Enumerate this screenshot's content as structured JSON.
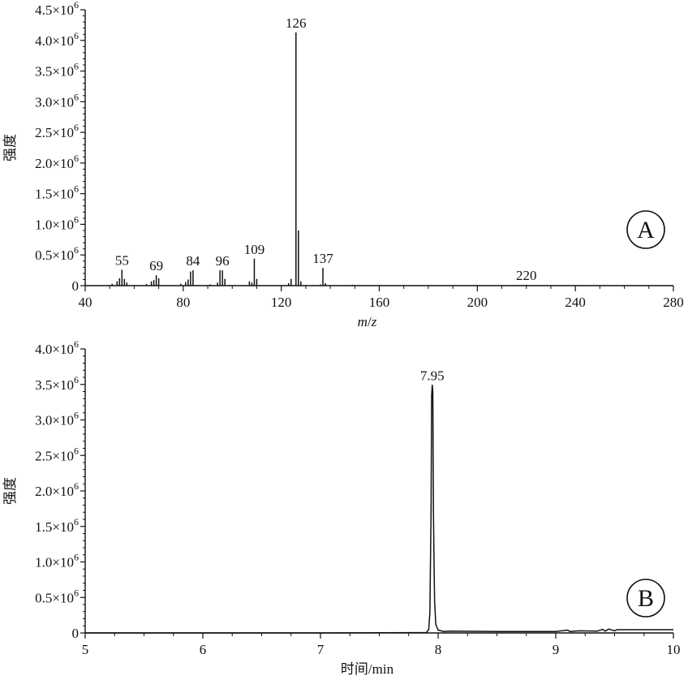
{
  "chart_data": [
    {
      "type": "bar",
      "panel_label": "A",
      "xlabel": "m/z",
      "ylabel": "强度",
      "xlim": [
        40,
        280
      ],
      "ylim": [
        0,
        4500000
      ],
      "x_ticks": [
        40,
        80,
        120,
        160,
        200,
        240,
        280
      ],
      "x_tick_labels": [
        "40",
        "80",
        "120",
        "160",
        "200",
        "240",
        "280"
      ],
      "y_ticks": [
        0,
        500000,
        1000000,
        1500000,
        2000000,
        2500000,
        3000000,
        3500000,
        4000000,
        4500000
      ],
      "y_tick_labels": [
        {
          "mantissa": "0",
          "exp": ""
        },
        {
          "mantissa": "0.5×10",
          "exp": "6"
        },
        {
          "mantissa": "1.0×10",
          "exp": "6"
        },
        {
          "mantissa": "1.5×10",
          "exp": "6"
        },
        {
          "mantissa": "2.0×10",
          "exp": "6"
        },
        {
          "mantissa": "2.5×10",
          "exp": "6"
        },
        {
          "mantissa": "3.0×10",
          "exp": "6"
        },
        {
          "mantissa": "3.5×10",
          "exp": "6"
        },
        {
          "mantissa": "4.0×10",
          "exp": "6"
        },
        {
          "mantissa": "4.5×10",
          "exp": "6"
        }
      ],
      "peaks": [
        {
          "x": 51,
          "y": 30000
        },
        {
          "x": 53,
          "y": 70000
        },
        {
          "x": 54,
          "y": 120000
        },
        {
          "x": 55,
          "y": 260000
        },
        {
          "x": 56,
          "y": 110000
        },
        {
          "x": 57,
          "y": 50000
        },
        {
          "x": 65,
          "y": 25000
        },
        {
          "x": 67,
          "y": 70000
        },
        {
          "x": 68,
          "y": 90000
        },
        {
          "x": 69,
          "y": 170000
        },
        {
          "x": 70,
          "y": 120000
        },
        {
          "x": 79,
          "y": 30000
        },
        {
          "x": 81,
          "y": 60000
        },
        {
          "x": 82,
          "y": 100000
        },
        {
          "x": 83,
          "y": 230000
        },
        {
          "x": 84,
          "y": 250000
        },
        {
          "x": 91,
          "y": 20000
        },
        {
          "x": 94,
          "y": 50000
        },
        {
          "x": 95,
          "y": 250000
        },
        {
          "x": 96,
          "y": 250000
        },
        {
          "x": 97,
          "y": 110000
        },
        {
          "x": 107,
          "y": 70000
        },
        {
          "x": 108,
          "y": 50000
        },
        {
          "x": 109,
          "y": 440000
        },
        {
          "x": 110,
          "y": 110000
        },
        {
          "x": 123,
          "y": 40000
        },
        {
          "x": 124,
          "y": 110000
        },
        {
          "x": 126,
          "y": 4130000
        },
        {
          "x": 127,
          "y": 900000
        },
        {
          "x": 128,
          "y": 70000
        },
        {
          "x": 136,
          "y": 20000
        },
        {
          "x": 137,
          "y": 290000
        },
        {
          "x": 138,
          "y": 40000
        },
        {
          "x": 149,
          "y": 15000
        },
        {
          "x": 220,
          "y": 15000
        }
      ],
      "annotations": [
        {
          "text": "55",
          "x": 55,
          "y": 260000
        },
        {
          "text": "69",
          "x": 69,
          "y": 170000
        },
        {
          "text": "84",
          "x": 84,
          "y": 250000
        },
        {
          "text": "96",
          "x": 96,
          "y": 250000
        },
        {
          "text": "109",
          "x": 109,
          "y": 440000
        },
        {
          "text": "126",
          "x": 126,
          "y": 4130000
        },
        {
          "text": "137",
          "x": 137,
          "y": 290000
        },
        {
          "text": "220",
          "x": 220,
          "y": 15000
        }
      ]
    },
    {
      "type": "line",
      "panel_label": "B",
      "xlabel": "时间/min",
      "ylabel": "强度",
      "xlim": [
        5,
        10
      ],
      "ylim": [
        0,
        4000000
      ],
      "x_ticks": [
        5,
        6,
        7,
        8,
        9,
        10
      ],
      "x_tick_labels": [
        "5",
        "6",
        "7",
        "8",
        "9",
        "10"
      ],
      "y_ticks": [
        0,
        500000,
        1000000,
        1500000,
        2000000,
        2500000,
        3000000,
        3500000,
        4000000
      ],
      "y_tick_labels": [
        {
          "mantissa": "0",
          "exp": ""
        },
        {
          "mantissa": "0.5×10",
          "exp": "6"
        },
        {
          "mantissa": "1.0×10",
          "exp": "6"
        },
        {
          "mantissa": "1.5×10",
          "exp": "6"
        },
        {
          "mantissa": "2.0×10",
          "exp": "6"
        },
        {
          "mantissa": "2.5×10",
          "exp": "6"
        },
        {
          "mantissa": "3.0×10",
          "exp": "6"
        },
        {
          "mantissa": "3.5×10",
          "exp": "6"
        },
        {
          "mantissa": "4.0×10",
          "exp": "6"
        }
      ],
      "series": [
        {
          "x": [
            5.0,
            7.0,
            7.9,
            7.92,
            7.93,
            7.94,
            7.945,
            7.95,
            7.955,
            7.96,
            7.965,
            7.97,
            7.98,
            8.0,
            8.05,
            8.1,
            8.5,
            9.0,
            9.1,
            9.12,
            9.2,
            9.35,
            9.4,
            9.42,
            9.45,
            9.5,
            9.52,
            10.0
          ],
          "y": [
            0,
            0,
            5000,
            50000,
            280000,
            1700000,
            3350000,
            3490000,
            3400000,
            1750000,
            1050000,
            450000,
            120000,
            40000,
            20000,
            25000,
            20000,
            20000,
            40000,
            20000,
            30000,
            25000,
            50000,
            25000,
            55000,
            30000,
            45000,
            45000
          ]
        }
      ],
      "annotations": [
        {
          "text": "7.95",
          "x": 7.95,
          "y": 3490000
        }
      ]
    }
  ]
}
